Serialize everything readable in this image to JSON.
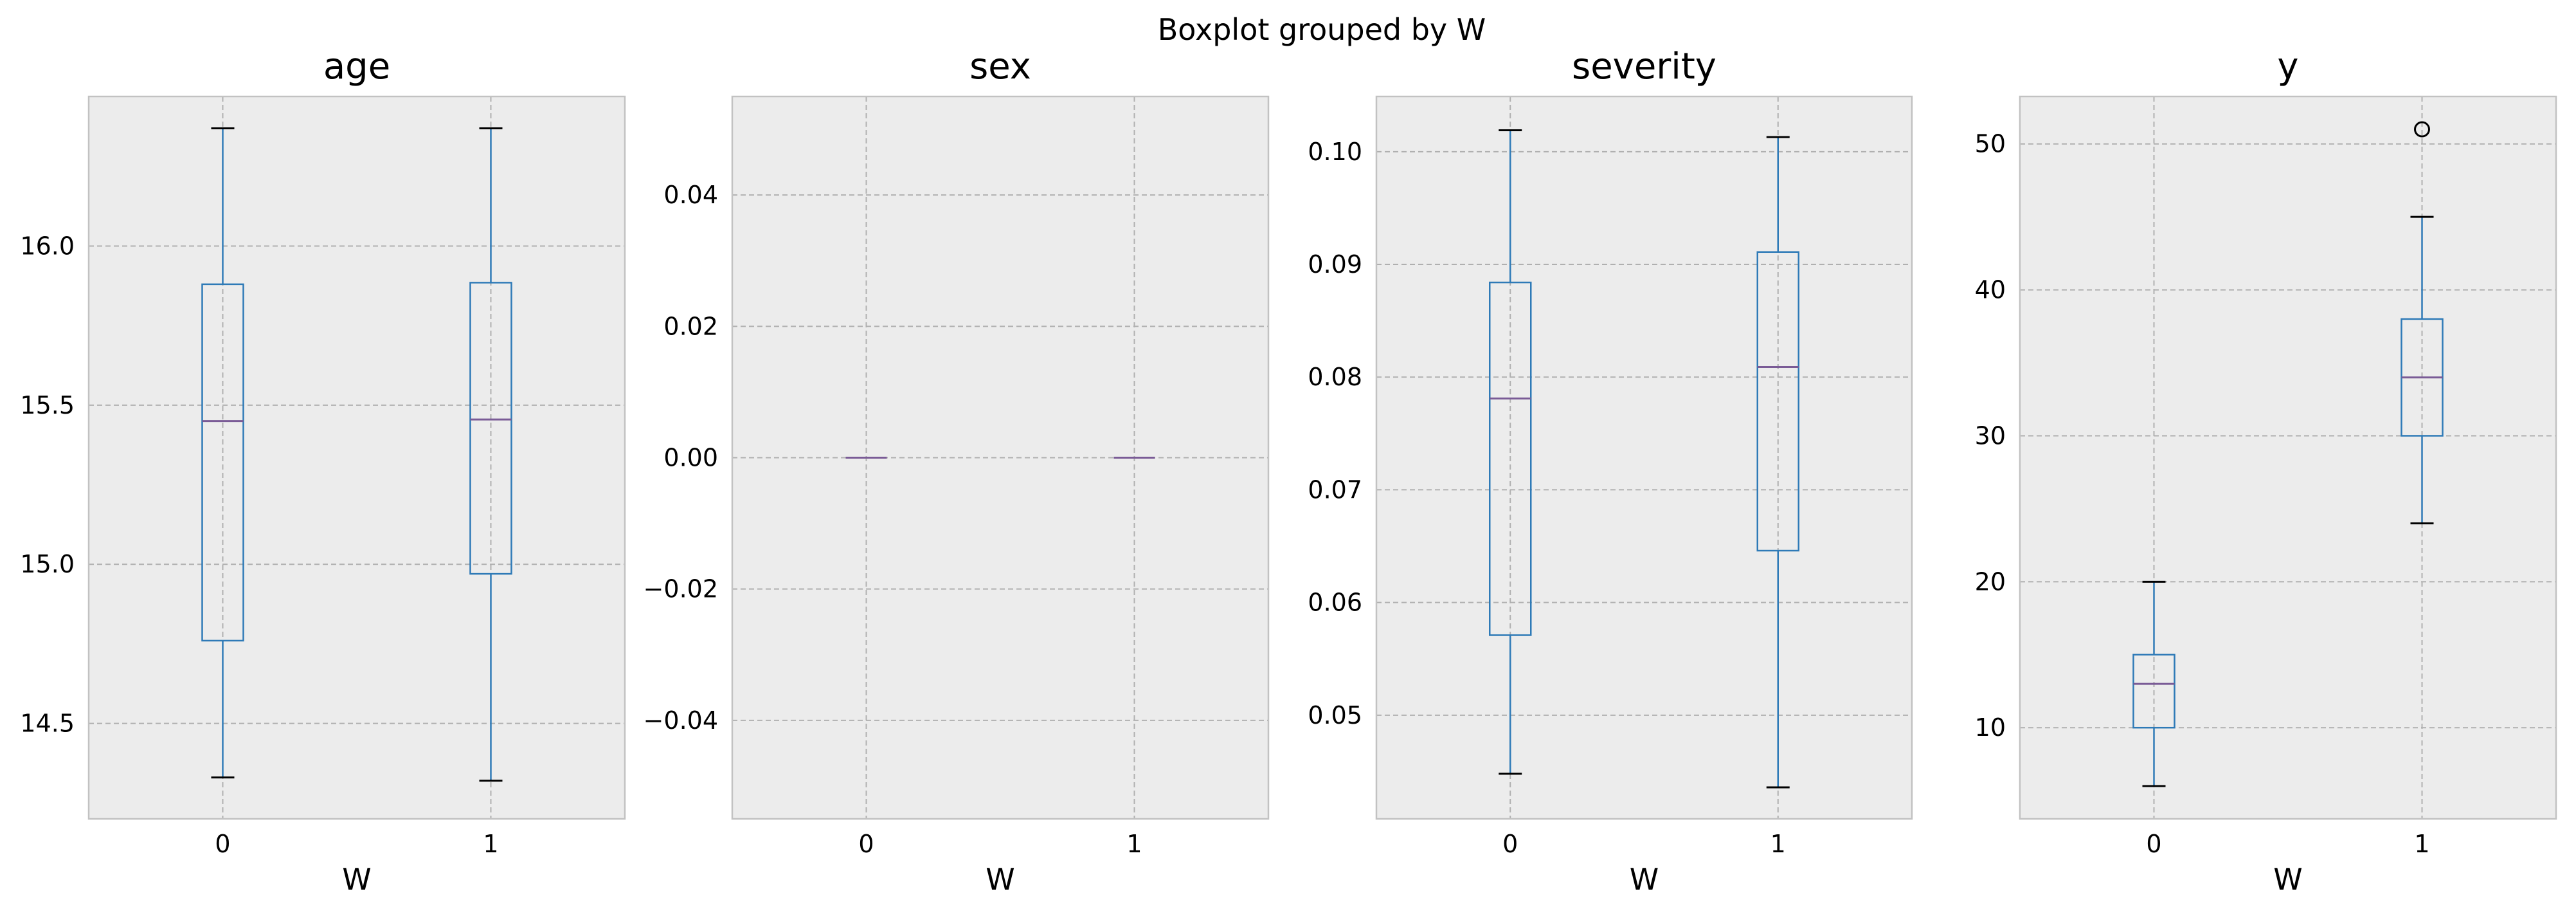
{
  "figure": {
    "suptitle": "Boxplot grouped by W"
  },
  "style": {
    "panel_bg": "#ececec",
    "grid_color": "#b0b0b0",
    "box_color": "#2e7ab7",
    "median_color": "#7a5b96",
    "cap_color": "#000000",
    "text_color": "#000000"
  },
  "chart_data": [
    {
      "type": "boxplot",
      "title": "age",
      "xlabel": "W",
      "categories": [
        "0",
        "1"
      ],
      "ylim": [
        14.2,
        16.47
      ],
      "yticks": [
        14.5,
        15.0,
        15.5,
        16.0
      ],
      "ytick_labels": [
        "14.5",
        "15.0",
        "15.5",
        "16.0"
      ],
      "boxes": [
        {
          "whisker_low": 14.33,
          "q1": 14.76,
          "median": 15.45,
          "q3": 15.88,
          "whisker_high": 16.37,
          "outliers": []
        },
        {
          "whisker_low": 14.32,
          "q1": 14.97,
          "median": 15.455,
          "q3": 15.885,
          "whisker_high": 16.37,
          "outliers": []
        }
      ]
    },
    {
      "type": "boxplot",
      "title": "sex",
      "xlabel": "W",
      "categories": [
        "0",
        "1"
      ],
      "ylim": [
        -0.055,
        0.055
      ],
      "yticks": [
        -0.04,
        -0.02,
        0.0,
        0.02,
        0.04
      ],
      "ytick_labels": [
        "−0.04",
        "−0.02",
        "0.00",
        "0.02",
        "0.04"
      ],
      "boxes": [
        {
          "whisker_low": 0,
          "q1": 0,
          "median": 0,
          "q3": 0,
          "whisker_high": 0,
          "outliers": []
        },
        {
          "whisker_low": 0,
          "q1": 0,
          "median": 0,
          "q3": 0,
          "whisker_high": 0,
          "outliers": []
        }
      ]
    },
    {
      "type": "boxplot",
      "title": "severity",
      "xlabel": "W",
      "categories": [
        "0",
        "1"
      ],
      "ylim": [
        0.0408,
        0.1049
      ],
      "yticks": [
        0.05,
        0.06,
        0.07,
        0.08,
        0.09,
        0.1
      ],
      "ytick_labels": [
        "0.05",
        "0.06",
        "0.07",
        "0.08",
        "0.09",
        "0.10"
      ],
      "boxes": [
        {
          "whisker_low": 0.0448,
          "q1": 0.0571,
          "median": 0.0781,
          "q3": 0.0884,
          "whisker_high": 0.1019,
          "outliers": []
        },
        {
          "whisker_low": 0.0436,
          "q1": 0.0646,
          "median": 0.0809,
          "q3": 0.0911,
          "whisker_high": 0.1013,
          "outliers": []
        }
      ]
    },
    {
      "type": "boxplot",
      "title": "y",
      "xlabel": "W",
      "categories": [
        "0",
        "1"
      ],
      "ylim": [
        3.75,
        53.25
      ],
      "yticks": [
        10,
        20,
        30,
        40,
        50
      ],
      "ytick_labels": [
        "10",
        "20",
        "30",
        "40",
        "50"
      ],
      "boxes": [
        {
          "whisker_low": 6,
          "q1": 10,
          "median": 13,
          "q3": 15,
          "whisker_high": 20,
          "outliers": []
        },
        {
          "whisker_low": 24,
          "q1": 30,
          "median": 34,
          "q3": 38,
          "whisker_high": 45,
          "outliers": [
            51
          ]
        }
      ]
    }
  ]
}
